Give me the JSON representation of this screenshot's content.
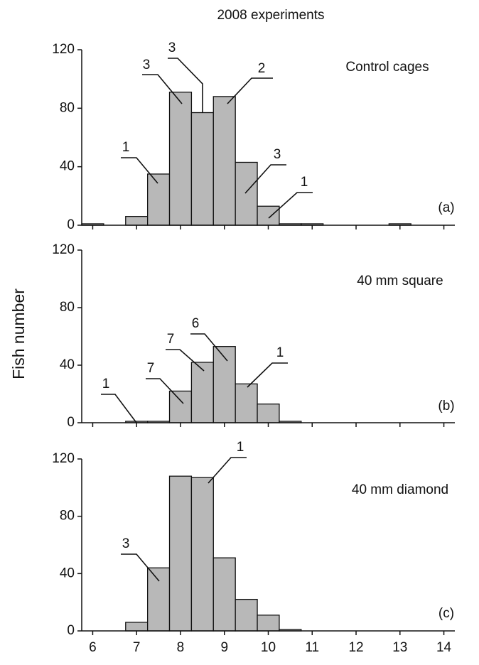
{
  "title": "2008 experiments",
  "y_label": "Fish number",
  "chart_data": [
    {
      "type": "histogram",
      "title": "Control cages",
      "label": "(a)",
      "color": "#b8b8b8",
      "bins": [
        5.75,
        6.25,
        6.75,
        7.25,
        7.75,
        8.25,
        8.75,
        9.25,
        9.75,
        10.25,
        10.75,
        11.25,
        11.75,
        12.25,
        12.75,
        13.25,
        13.75,
        14.25
      ],
      "values": [
        1,
        0,
        6,
        35,
        91,
        77,
        88,
        43,
        13,
        1,
        1,
        0,
        0,
        0,
        1,
        0,
        0
      ],
      "annotations": [
        1,
        3,
        3,
        2,
        3,
        1
      ],
      "xlim": [
        5.75,
        14.25
      ],
      "xticks": [
        6,
        7,
        8,
        9,
        10,
        11,
        12,
        13,
        14
      ],
      "ylim": [
        0,
        120
      ],
      "yticks": [
        0,
        40,
        80,
        120
      ]
    },
    {
      "type": "histogram",
      "title": "40 mm square",
      "label": "(b)",
      "color": "#b8b8b8",
      "bins": [
        5.75,
        6.25,
        6.75,
        7.25,
        7.75,
        8.25,
        8.75,
        9.25,
        9.75,
        10.25,
        10.75,
        11.25,
        11.75,
        12.25,
        12.75,
        13.25,
        13.75,
        14.25
      ],
      "values": [
        0,
        0,
        1,
        1,
        22,
        42,
        53,
        27,
        13,
        1,
        0,
        0,
        0,
        0,
        0,
        0,
        0
      ],
      "annotations": [
        1,
        7,
        7,
        6,
        1
      ],
      "xlim": [
        5.75,
        14.25
      ],
      "xticks": [
        6,
        7,
        8,
        9,
        10,
        11,
        12,
        13,
        14
      ],
      "ylim": [
        0,
        120
      ],
      "yticks": [
        0,
        40,
        80,
        120
      ]
    },
    {
      "type": "histogram",
      "title": "40 mm diamond",
      "label": "(c)",
      "color": "#b8b8b8",
      "bins": [
        5.75,
        6.25,
        6.75,
        7.25,
        7.75,
        8.25,
        8.75,
        9.25,
        9.75,
        10.25,
        10.75,
        11.25,
        11.75,
        12.25,
        12.75,
        13.25,
        13.75,
        14.25
      ],
      "values": [
        0,
        0,
        6,
        44,
        108,
        107,
        51,
        22,
        11,
        1,
        0,
        0,
        0,
        0,
        0,
        0,
        0
      ],
      "annotations": [
        3,
        1
      ],
      "xlim": [
        5.75,
        14.25
      ],
      "xticks": [
        6,
        7,
        8,
        9,
        10,
        11,
        12,
        13,
        14
      ],
      "ylim": [
        0,
        120
      ],
      "yticks": [
        0,
        40,
        80,
        120
      ]
    }
  ]
}
